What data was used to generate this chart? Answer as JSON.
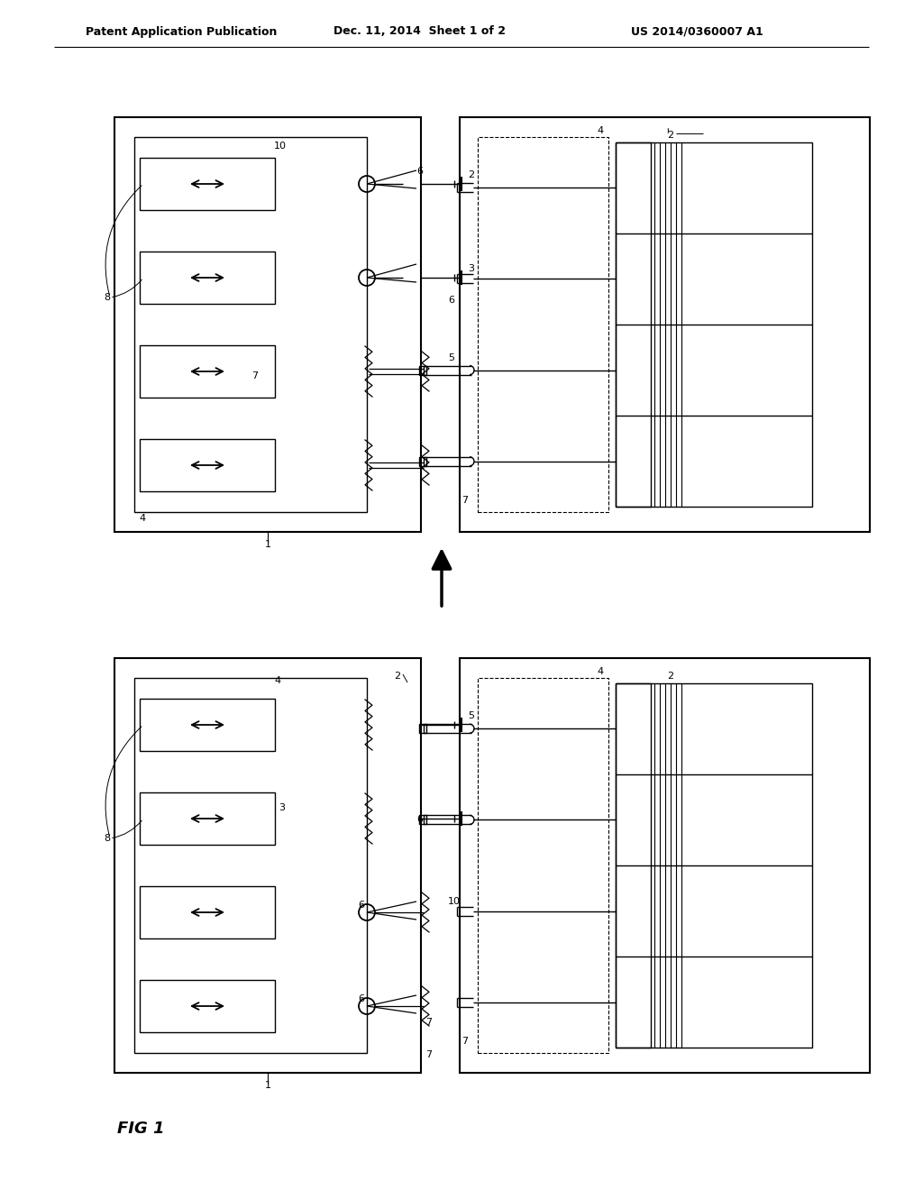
{
  "title_left": "Patent Application Publication",
  "title_center": "Dec. 11, 2014  Sheet 1 of 2",
  "title_right": "US 2014/0360007 A1",
  "fig_label": "FIG 1",
  "bg_color": "#ffffff",
  "line_color": "#000000",
  "font_size_header": 9,
  "font_size_label": 8,
  "font_size_fig": 13
}
